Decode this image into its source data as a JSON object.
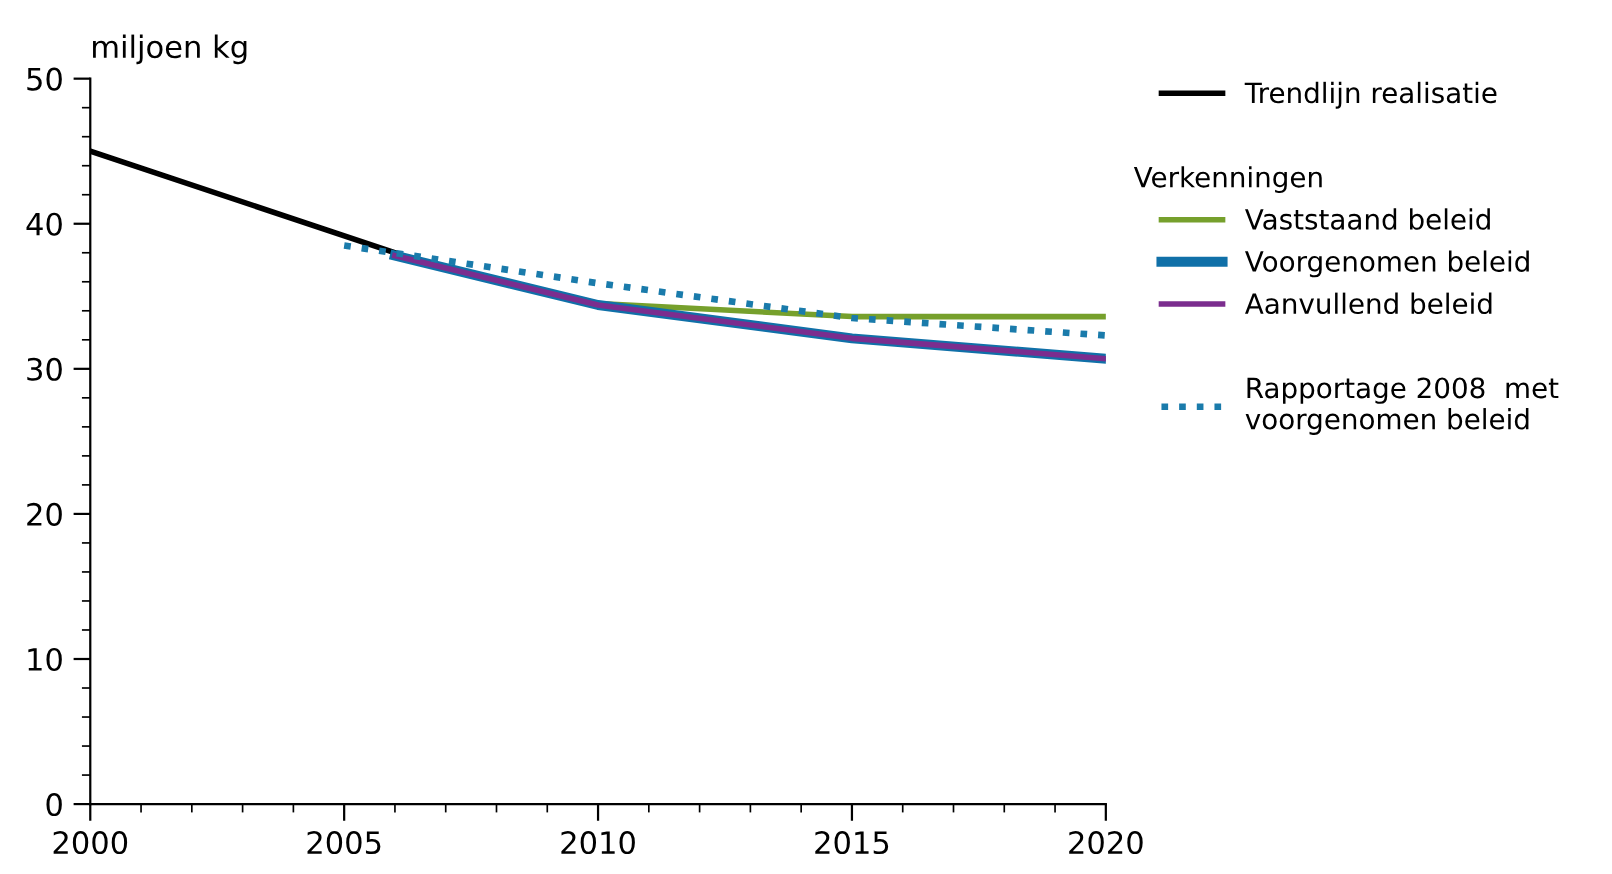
{
  "chart_data": {
    "type": "line",
    "ylabel": "miljoen kg",
    "legend_title": "Verkenningen",
    "xlim": [
      2000,
      2020
    ],
    "ylim": [
      0,
      50
    ],
    "xticks": [
      2000,
      2005,
      2010,
      2015,
      2020
    ],
    "yticks": [
      0,
      10,
      20,
      30,
      40,
      50
    ],
    "grid": false,
    "legend": "right",
    "marker": "none",
    "series": [
      {
        "name": "Trendlijn realisatie",
        "color": "#000000",
        "x": [
          2000,
          2006
        ],
        "values": [
          45,
          38
        ],
        "line_style": "solid"
      },
      {
        "name": "Vaststaand beleid",
        "color": "#76a02c",
        "x": [
          2006,
          2010,
          2015,
          2020
        ],
        "values": [
          37.8,
          34.5,
          33.6,
          33.6
        ],
        "line_style": "solid"
      },
      {
        "name": "Voorgenomen beleid",
        "color": "#1070a8",
        "x": [
          2006,
          2010,
          2015,
          2020
        ],
        "values": [
          37.8,
          34.4,
          32.1,
          30.7
        ],
        "line_style": "solid"
      },
      {
        "name": "Aanvullend beleid",
        "color": "#7b2d8e",
        "x": [
          2006,
          2010,
          2015,
          2020
        ],
        "values": [
          37.8,
          34.4,
          32.1,
          30.7
        ],
        "line_style": "solid"
      },
      {
        "name": "Rapportage 2008  met\nvoorgenomen beleid",
        "color": "#1a7bab",
        "x": [
          2005,
          2010,
          2015,
          2020
        ],
        "values": [
          38.5,
          35.9,
          33.5,
          32.3
        ],
        "line_style": "dotted"
      }
    ]
  }
}
